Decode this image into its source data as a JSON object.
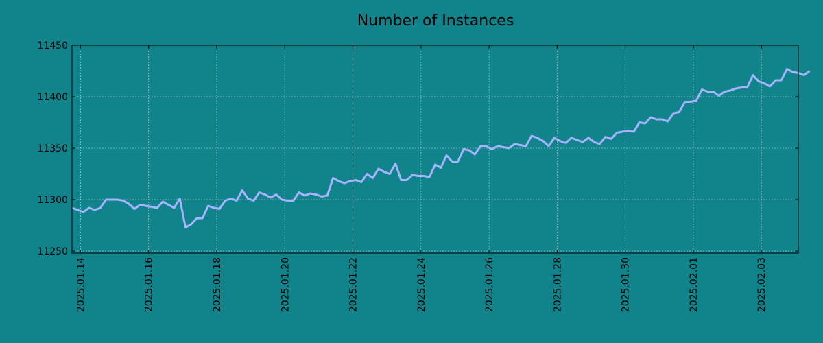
{
  "background": "#10848a",
  "chart_data": {
    "type": "line",
    "title": "Number of Instances",
    "xlabel": "",
    "ylabel": "",
    "x_tick_labels": [
      "2025.01.14",
      "2025.01.16",
      "2025.01.18",
      "2025.01.20",
      "2025.01.22",
      "2025.01.24",
      "2025.01.26",
      "2025.01.28",
      "2025.01.30",
      "2025.02.01",
      "2025.02.03"
    ],
    "y_tick_labels": [
      "11250",
      "11300",
      "11350",
      "11400",
      "11450"
    ],
    "y_ticks": [
      11250,
      11300,
      11350,
      11400,
      11450
    ],
    "ylim": [
      11248,
      11450
    ],
    "x_start": "2025.01.13 18:00",
    "x_end": "2025.02.04 02:00",
    "x_sampling": "every 4 hours from x_start",
    "grid": true,
    "line_color": "#a6b4ff",
    "series": [
      {
        "name": "",
        "values": [
          11292,
          11290,
          11288,
          11292,
          11290,
          11292,
          11300,
          11300,
          11300,
          11299,
          11296,
          11291,
          11295,
          11294,
          11293,
          11292,
          11298,
          11295,
          11292,
          11301,
          11273,
          11276,
          11282,
          11282,
          11294,
          11292,
          11291,
          11299,
          11301,
          11299,
          11309,
          11301,
          11299,
          11307,
          11305,
          11302,
          11305,
          11300,
          11299,
          11299,
          11307,
          11304,
          11306,
          11305,
          11303,
          11304,
          11321,
          11318,
          11316,
          11318,
          11319,
          11317,
          11325,
          11321,
          11330,
          11327,
          11325,
          11335,
          11319,
          11319,
          11324,
          11323,
          11323,
          11322,
          11334,
          11331,
          11343,
          11337,
          11337,
          11349,
          11348,
          11344,
          11352,
          11352,
          11349,
          11352,
          11351,
          11350,
          11354,
          11353,
          11352,
          11362,
          11360,
          11357,
          11352,
          11360,
          11357,
          11355,
          11360,
          11358,
          11356,
          11360,
          11356,
          11354,
          11361,
          11359,
          11365,
          11366,
          11367,
          11366,
          11375,
          11374,
          11380,
          11378,
          11378,
          11376,
          11384,
          11385,
          11395,
          11395,
          11396,
          11407,
          11405,
          11405,
          11401,
          11405,
          11406,
          11408,
          11409,
          11409,
          11421,
          11415,
          11413,
          11410,
          11416,
          11416,
          11427,
          11424,
          11423,
          11421,
          11425
        ]
      }
    ]
  }
}
